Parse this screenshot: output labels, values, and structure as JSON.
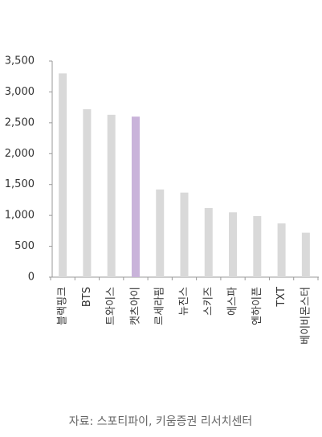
{
  "chart_data": {
    "type": "bar",
    "categories": [
      "블랙핑크",
      "BTS",
      "트와이스",
      "캣츠아이",
      "르세라핌",
      "뉴진스",
      "스키즈",
      "에스파",
      "엔하이픈",
      "TXT",
      "베이비몬스터"
    ],
    "values": [
      3300,
      2720,
      2630,
      2600,
      1420,
      1370,
      1120,
      1050,
      990,
      870,
      720
    ],
    "colors": [
      "#d9d9d9",
      "#d9d9d9",
      "#d9d9d9",
      "#c9b3da",
      "#d9d9d9",
      "#d9d9d9",
      "#d9d9d9",
      "#d9d9d9",
      "#d9d9d9",
      "#d9d9d9",
      "#d9d9d9"
    ],
    "ylim": [
      0,
      3500
    ],
    "yticks": [
      0,
      500,
      {
        "value": 1000,
        "label": "1,000"
      },
      {
        "value": 1500,
        "label": "1,500"
      },
      {
        "value": 2000,
        "label": "2,000"
      },
      {
        "value": 2500,
        "label": "2,500"
      },
      {
        "value": 3000,
        "label": "3,000"
      },
      {
        "value": 3500,
        "label": "3,500"
      }
    ],
    "source": "자료: 스포티파이, 키움증권 리서치센터"
  }
}
